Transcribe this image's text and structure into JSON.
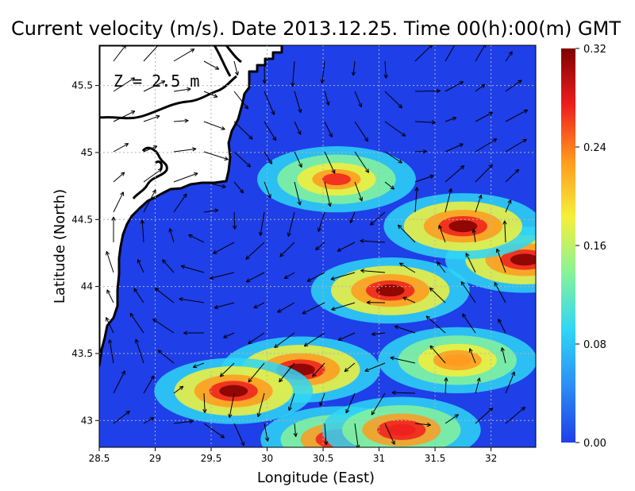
{
  "title": "Current velocity (m/s). Date 2013.12.25. Time 00(h):00(m) GMT",
  "depth_label": "Z = 2.5 m",
  "xlabel": "Longitude (East)",
  "ylabel": "Latitude (North)",
  "x_ticks": [
    "28.5",
    "29",
    "29.5",
    "30",
    "30.5",
    "31",
    "31.5",
    "32"
  ],
  "y_ticks": [
    "43",
    "43.5",
    "44",
    "44.5",
    "45",
    "45.5"
  ],
  "colorbar_ticks": [
    "0.00",
    "0.08",
    "0.16",
    "0.24",
    "0.32"
  ],
  "colors": {
    "background": "#ffffff",
    "land": "#ffffff",
    "coastline": "#000000",
    "grid": "#b4b4b4",
    "colormap": [
      "#1f3fe8",
      "#2c8cf5",
      "#2fd6f5",
      "#86f29a",
      "#f5f03a",
      "#ff9a1e",
      "#ee1e1e",
      "#7f0000"
    ]
  },
  "chart_data": {
    "type": "heatmap",
    "title": "Current velocity (m/s). Date 2013.12.25. Time 00(h):00(m) GMT",
    "xlabel": "Longitude (East)",
    "ylabel": "Latitude (North)",
    "xlim": [
      28.5,
      32.4
    ],
    "ylim": [
      42.8,
      45.8
    ],
    "colorbar": {
      "min": 0.0,
      "max": 0.32,
      "ticks": [
        0.0,
        0.08,
        0.16,
        0.24,
        0.32
      ]
    },
    "grid": true,
    "features": [
      {
        "lon": 31.75,
        "lat": 44.45,
        "speed": 0.32
      },
      {
        "lon": 31.1,
        "lat": 43.97,
        "speed": 0.3
      },
      {
        "lon": 30.3,
        "lat": 43.38,
        "speed": 0.3
      },
      {
        "lon": 29.7,
        "lat": 43.22,
        "speed": 0.3
      },
      {
        "lon": 30.65,
        "lat": 42.86,
        "speed": 0.28
      },
      {
        "lon": 31.2,
        "lat": 42.93,
        "speed": 0.28
      },
      {
        "lon": 30.62,
        "lat": 44.8,
        "speed": 0.26
      },
      {
        "lon": 32.3,
        "lat": 44.2,
        "speed": 0.3
      },
      {
        "lon": 31.7,
        "lat": 43.45,
        "speed": 0.24
      }
    ]
  }
}
